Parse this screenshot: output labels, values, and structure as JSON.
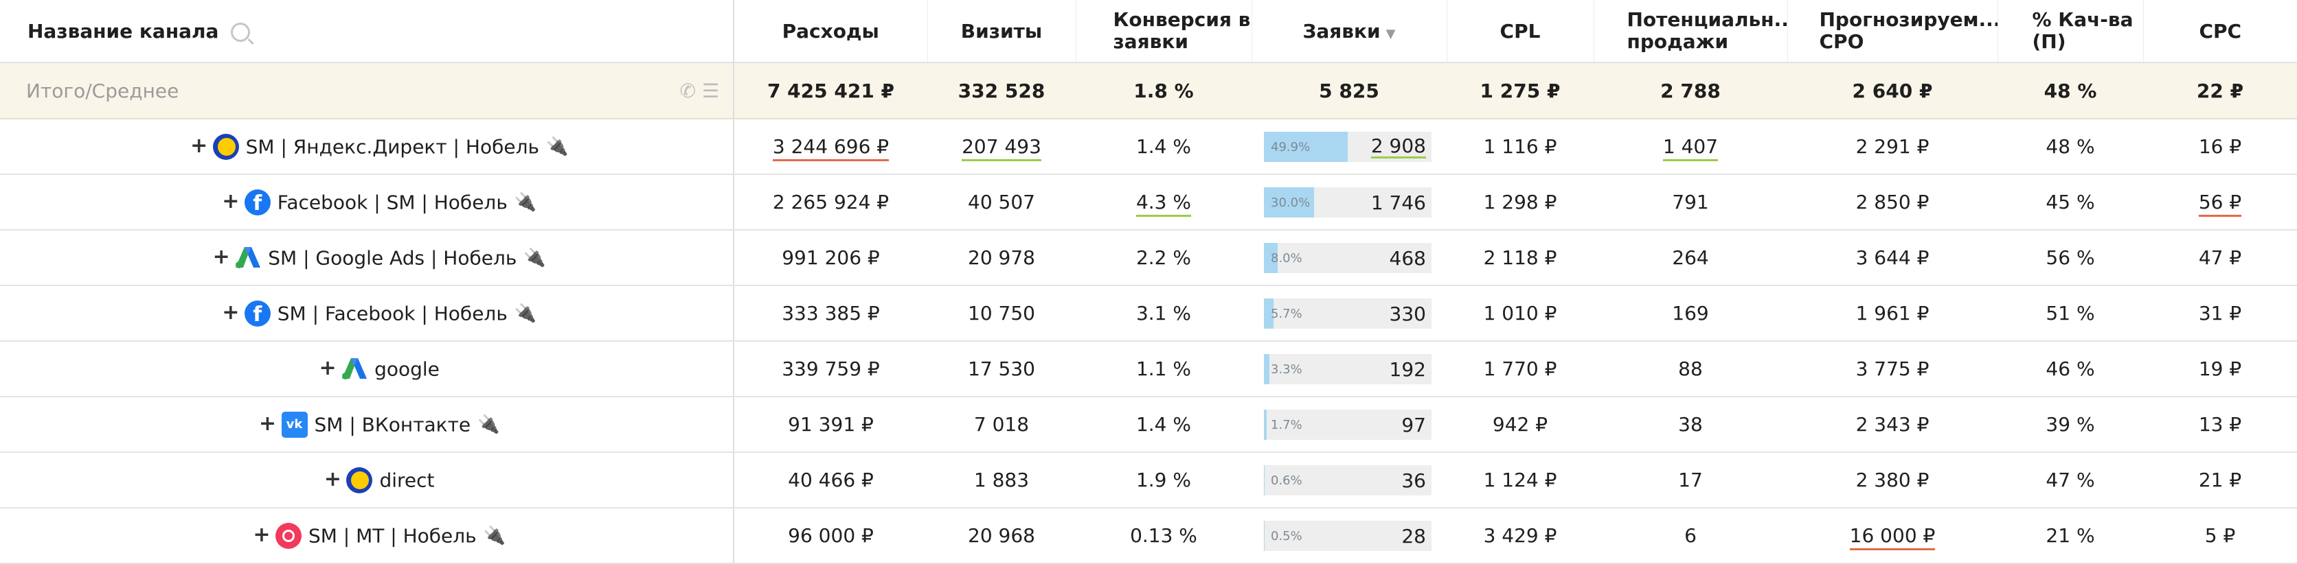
{
  "header": {
    "channel": "Название канала",
    "expenses": "Расходы",
    "visits": "Визиты",
    "conversion": "Конверсия в заявки",
    "leads": "Заявки",
    "cpl": "CPL",
    "potential_sales": "Потенциальн... продажи",
    "forecast_cpo": "Прогнозируем... CPO",
    "quality": "% Кач-ва (П)",
    "cpc": "CPC"
  },
  "summary": {
    "label": "Итого/Среднее",
    "expenses": "7 425 421 ₽",
    "visits": "332 528",
    "conversion": "1.8 %",
    "leads": "5 825",
    "cpl": "1 275 ₽",
    "potential_sales": "2 788",
    "forecast_cpo": "2 640 ₽",
    "quality": "48 %",
    "cpc": "22 ₽"
  },
  "rows": [
    {
      "icon": "yandex-direct-icon",
      "name": "SM | Яндекс.Директ | Нобель",
      "plug": true,
      "expenses": "3 244 696 ₽",
      "visits": "207 493",
      "conversion": "1.4 %",
      "lead_pct": "49.9%",
      "lead_share": 0.499,
      "leads": "2 908",
      "cpl": "1 116 ₽",
      "potential_sales": "1 407",
      "forecast_cpo": "2 291 ₽",
      "quality": "48 %",
      "cpc": "16 ₽"
    },
    {
      "icon": "facebook-icon",
      "name": "Facebook | SM | Нобель",
      "plug": true,
      "expenses": "2 265 924 ₽",
      "visits": "40 507",
      "conversion": "4.3 %",
      "lead_pct": "30.0%",
      "lead_share": 0.3,
      "leads": "1 746",
      "cpl": "1 298 ₽",
      "potential_sales": "791",
      "forecast_cpo": "2 850 ₽",
      "quality": "45 %",
      "cpc": "56 ₽"
    },
    {
      "icon": "google-ads-icon",
      "name": "SM | Google Ads | Нобель",
      "plug": true,
      "expenses": "991 206 ₽",
      "visits": "20 978",
      "conversion": "2.2 %",
      "lead_pct": "8.0%",
      "lead_share": 0.08,
      "leads": "468",
      "cpl": "2 118 ₽",
      "potential_sales": "264",
      "forecast_cpo": "3 644 ₽",
      "quality": "56 %",
      "cpc": "47 ₽"
    },
    {
      "icon": "facebook-icon",
      "name": "SM | Facebook  | Нобель",
      "plug": true,
      "expenses": "333 385 ₽",
      "visits": "10 750",
      "conversion": "3.1 %",
      "lead_pct": "5.7%",
      "lead_share": 0.057,
      "leads": "330",
      "cpl": "1 010 ₽",
      "potential_sales": "169",
      "forecast_cpo": "1 961 ₽",
      "quality": "51 %",
      "cpc": "31 ₽"
    },
    {
      "icon": "google-ads-icon",
      "name": "google",
      "plug": false,
      "expenses": "339 759 ₽",
      "visits": "17 530",
      "conversion": "1.1 %",
      "lead_pct": "3.3%",
      "lead_share": 0.033,
      "leads": "192",
      "cpl": "1 770 ₽",
      "potential_sales": "88",
      "forecast_cpo": "3 775 ₽",
      "quality": "46 %",
      "cpc": "19 ₽"
    },
    {
      "icon": "vk-icon",
      "name": "SM | ВКонтакте",
      "plug": true,
      "expenses": "91 391 ₽",
      "visits": "7 018",
      "conversion": "1.4 %",
      "lead_pct": "1.7%",
      "lead_share": 0.017,
      "leads": "97",
      "cpl": "942 ₽",
      "potential_sales": "38",
      "forecast_cpo": "2 343 ₽",
      "quality": "39 %",
      "cpc": "13 ₽"
    },
    {
      "icon": "yandex-direct-icon",
      "name": "direct",
      "plug": false,
      "expenses": "40 466 ₽",
      "visits": "1 883",
      "conversion": "1.9 %",
      "lead_pct": "0.6%",
      "lead_share": 0.006,
      "leads": "36",
      "cpl": "1 124 ₽",
      "potential_sales": "17",
      "forecast_cpo": "2 380 ₽",
      "quality": "47 %",
      "cpc": "21 ₽"
    },
    {
      "icon": "mytarget-icon",
      "name": "SM | MT | Нобель",
      "plug": true,
      "expenses": "96 000 ₽",
      "visits": "20 968",
      "conversion": "0.13 %",
      "lead_pct": "0.5%",
      "lead_share": 0.005,
      "leads": "28",
      "cpl": "3 429 ₽",
      "potential_sales": "6",
      "forecast_cpo": "16 000 ₽",
      "quality": "21 %",
      "cpc": "5 ₽"
    }
  ],
  "colors": {
    "summary_bg": "#f9f5e8",
    "bar_fill": "#a9d7f2",
    "underline_red": "#e36a4a",
    "underline_green": "#9ccc4a"
  }
}
